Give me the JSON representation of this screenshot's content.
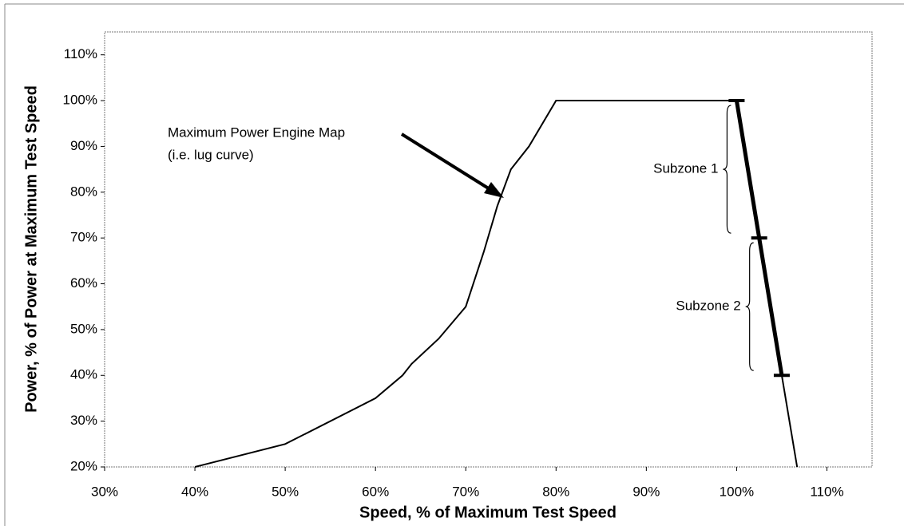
{
  "chart_data": {
    "type": "line",
    "x_label": "Speed, % of Maximum Test Speed",
    "y_label": "Power, % of Power at Maximum Test Speed",
    "x": [
      40,
      50,
      60,
      63,
      64,
      67,
      70,
      72,
      73.5,
      75,
      77,
      80,
      100,
      102.5,
      105,
      106.7
    ],
    "series": [
      {
        "color": "#000000",
        "values": [
          20,
          25,
          35,
          40,
          42.5,
          48,
          55,
          67,
          77,
          85,
          90,
          100,
          100,
          70,
          40,
          20
        ]
      }
    ],
    "boundaries": {
      "speed": [
        100,
        102.5,
        105
      ],
      "power": [
        100,
        70,
        40
      ]
    },
    "subzones": [
      "Subzone 1",
      "Subzone 2"
    ],
    "annotation": [
      "Maximum Power Engine Map",
      "(i.e. lug curve)"
    ],
    "xlim": [
      30,
      115
    ],
    "ylim": [
      20,
      115
    ],
    "xticks": [
      {
        "value": 30,
        "label": "30%"
      },
      {
        "value": 40,
        "label": "40%"
      },
      {
        "value": 50,
        "label": "50%"
      },
      {
        "value": 60,
        "label": "60%"
      },
      {
        "value": 70,
        "label": "70%"
      },
      {
        "value": 80,
        "label": "80%"
      },
      {
        "value": 90,
        "label": "90%"
      },
      {
        "value": 100,
        "label": "100%"
      },
      {
        "value": 110,
        "label": "110%"
      }
    ],
    "yticks": [
      {
        "value": 20,
        "label": "20%"
      },
      {
        "value": 30,
        "label": "30%"
      },
      {
        "value": 40,
        "label": "40%"
      },
      {
        "value": 50,
        "label": "50%"
      },
      {
        "value": 60,
        "label": "60%"
      },
      {
        "value": 70,
        "label": "70%"
      },
      {
        "value": 80,
        "label": "80%"
      },
      {
        "value": 90,
        "label": "90%"
      },
      {
        "value": 100,
        "label": "100%"
      },
      {
        "value": 110,
        "label": "110%"
      }
    ],
    "grid": false
  }
}
